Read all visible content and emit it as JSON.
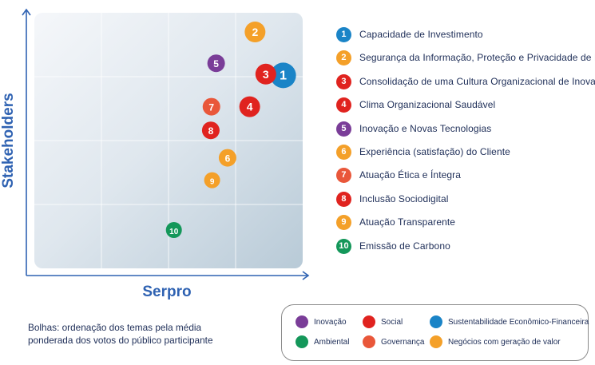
{
  "chart_data": {
    "type": "scatter",
    "title": "",
    "xlabel": "Serpro",
    "ylabel": "Stakeholders",
    "xlim": [
      0,
      4
    ],
    "ylim": [
      0,
      4
    ],
    "grid": true,
    "legend_position": "right",
    "points": [
      {
        "id": "1",
        "label": "Capacidade de Investimento",
        "x": 3.71,
        "y": 3.02,
        "category": "Sustentabilidade Econômico-Financeira",
        "size": "large"
      },
      {
        "id": "2",
        "label": "Segurança da Informação, Proteção e Privacidade de Dados",
        "x": 3.29,
        "y": 3.7,
        "category": "Negócios com geração de valor",
        "size": "medium"
      },
      {
        "id": "3",
        "label": "Consolidação de uma Cultura Organizacional de Inovação",
        "x": 3.45,
        "y": 3.04,
        "category": "Social",
        "size": "medium"
      },
      {
        "id": "4",
        "label": "Clima Organizacional Saudável",
        "x": 3.21,
        "y": 2.53,
        "category": "Social",
        "size": "medium"
      },
      {
        "id": "5",
        "label": "Inovação e Novas Tecnologias",
        "x": 2.71,
        "y": 3.21,
        "category": "Inovação",
        "size": "small"
      },
      {
        "id": "6",
        "label": "Experiência (satisfação) do Cliente",
        "x": 2.88,
        "y": 1.73,
        "category": "Negócios com geração de valor",
        "size": "small"
      },
      {
        "id": "7",
        "label": "Atuação Ética e Íntegra",
        "x": 2.64,
        "y": 2.53,
        "category": "Governança",
        "size": "small"
      },
      {
        "id": "8",
        "label": "Inclusão Sociodigital",
        "x": 2.63,
        "y": 2.16,
        "category": "Social",
        "size": "small"
      },
      {
        "id": "9",
        "label": "Atuação Transparente",
        "x": 2.65,
        "y": 1.38,
        "category": "Negócios com geração de valor",
        "size": "tiny"
      },
      {
        "id": "10",
        "label": "Emissão de Carbono",
        "x": 2.08,
        "y": 0.6,
        "category": "Ambiental",
        "size": "tiny"
      }
    ]
  },
  "legend_items": [
    {
      "number": "1",
      "label": "Capacidade de Investimento",
      "color": "#1a84c7"
    },
    {
      "number": "2",
      "label": "Segurança da Informação, Proteção e Privacidade de Dados",
      "color": "#f4a029"
    },
    {
      "number": "3",
      "label": "Consolidação de uma Cultura Organizacional de Inovação",
      "color": "#e0231f"
    },
    {
      "number": "4",
      "label": "Clima Organizacional Saudável",
      "color": "#e0231f"
    },
    {
      "number": "5",
      "label": "Inovação e Novas Tecnologias",
      "color": "#7a3d98"
    },
    {
      "number": "6",
      "label": "Experiência (satisfação) do Cliente",
      "color": "#f4a029"
    },
    {
      "number": "7",
      "label": "Atuação Ética e Íntegra",
      "color": "#e9573a"
    },
    {
      "number": "8",
      "label": "Inclusão Sociodigital",
      "color": "#e0231f"
    },
    {
      "number": "9",
      "label": "Atuação Transparente",
      "color": "#f4a029"
    },
    {
      "number": "10",
      "label": "Emissão de Carbono",
      "color": "#14975a"
    }
  ],
  "categories": {
    "Inovação": "#7a3d98",
    "Social": "#e0231f",
    "Sustentabilidade Econômico-Financeira": "#1a84c7",
    "Ambiental": "#14975a",
    "Governança": "#e9573a",
    "Negócios com geração de valor": "#f4a029"
  },
  "category_legend": [
    {
      "label": "Inovação",
      "color": "#7a3d98",
      "icon": "purple-circle"
    },
    {
      "label": "Social",
      "color": "#e0231f",
      "icon": "red-circle"
    },
    {
      "label": "Sustentabilidade Econômico-Financeira",
      "color": "#1a84c7",
      "icon": "blue-circle"
    },
    {
      "label": "Ambiental",
      "color": "#14975a",
      "icon": "green-circle"
    },
    {
      "label": "Governança",
      "color": "#e9573a",
      "icon": "orange-red-circle"
    },
    {
      "label": "Negócios com geração de valor",
      "color": "#f4a029",
      "icon": "orange-circle"
    }
  ],
  "note": "Bolhas: ordenação dos temas pela média\nponderada dos votos do público participante",
  "axis_color": "#2f62b2"
}
